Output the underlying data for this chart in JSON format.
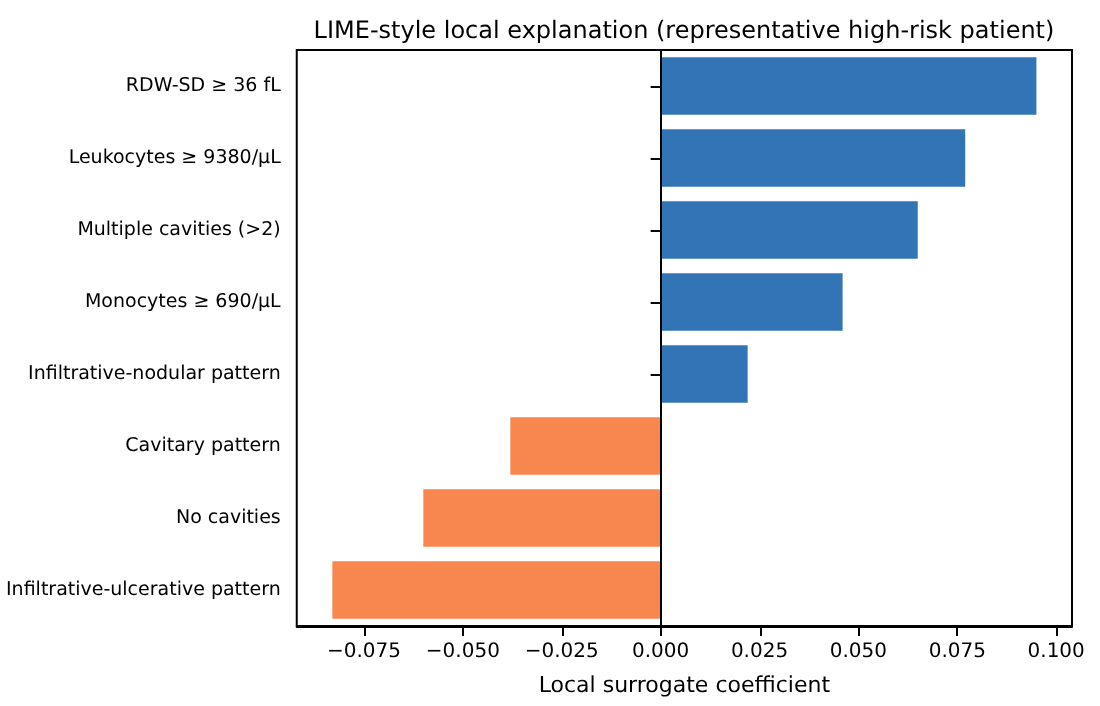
{
  "chart_data": {
    "type": "bar",
    "orientation": "horizontal",
    "title": "LIME-style local explanation (representative high-risk patient)",
    "xlabel": "Local surrogate coefficient",
    "categories": [
      "RDW-SD ≥ 36 fL",
      "Leukocytes ≥ 9380/µL",
      "Multiple cavities (>2)",
      "Monocytes ≥ 690/µL",
      "Infiltrative-nodular pattern",
      "Cavitary pattern",
      "No cavities",
      "Infiltrative-ulcerative pattern"
    ],
    "values": [
      0.095,
      0.077,
      0.065,
      0.046,
      0.022,
      -0.038,
      -0.06,
      -0.083
    ],
    "colors": [
      "#3274b5",
      "#3274b5",
      "#3274b5",
      "#3274b5",
      "#3274b5",
      "#f7874f",
      "#f7874f",
      "#f7874f"
    ],
    "xlim": [
      -0.092,
      0.104
    ],
    "xticks": [
      {
        "value": -0.075,
        "label": "−0.075"
      },
      {
        "value": -0.05,
        "label": "−0.050"
      },
      {
        "value": -0.025,
        "label": "−0.025"
      },
      {
        "value": 0,
        "label": "0.000"
      },
      {
        "value": 0.025,
        "label": "0.025"
      },
      {
        "value": 0.05,
        "label": "0.050"
      },
      {
        "value": 0.075,
        "label": "0.075"
      },
      {
        "value": 0.1,
        "label": "0.100"
      }
    ],
    "ref_lines": [
      {
        "axis": "x",
        "value": 0,
        "color": "#000000"
      }
    ]
  }
}
